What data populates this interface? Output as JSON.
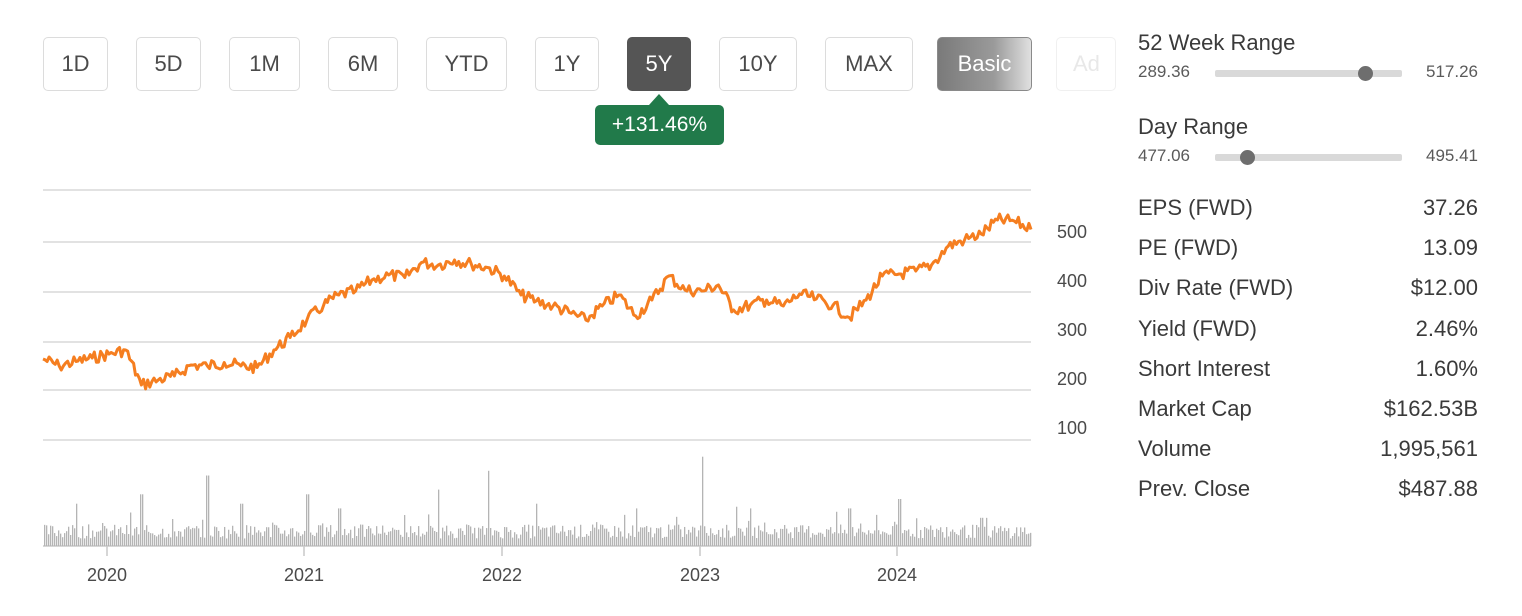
{
  "range_buttons": [
    {
      "label": "1D"
    },
    {
      "label": "5D"
    },
    {
      "label": "1M"
    },
    {
      "label": "6M"
    },
    {
      "label": "YTD"
    },
    {
      "label": "1Y"
    },
    {
      "label": "5Y",
      "active": true
    },
    {
      "label": "10Y"
    },
    {
      "label": "MAX"
    },
    {
      "label": "Basic"
    },
    {
      "label": "Ad"
    }
  ],
  "change_badge": "+131.46%",
  "colors": {
    "line": "#f57e20",
    "volume": "#b4b4b4",
    "badge": "#217a4a",
    "active_button": "#555555",
    "grid": "#d8d8d8"
  },
  "chart_data": {
    "type": "line",
    "x_ticks": [
      "2020",
      "2021",
      "2022",
      "2023",
      "2024"
    ],
    "y_ticks": [
      100,
      200,
      300,
      400,
      500
    ],
    "ylim": [
      50,
      550
    ],
    "series": [
      {
        "values_by_date": [
          [
            "2019-09",
            212
          ],
          [
            "2019-10",
            198
          ],
          [
            "2019-11",
            207
          ],
          [
            "2019-12",
            214
          ],
          [
            "2020-01",
            222
          ],
          [
            "2020-02",
            230
          ],
          [
            "2020-03",
            160
          ],
          [
            "2020-04",
            170
          ],
          [
            "2020-05",
            178
          ],
          [
            "2020-06",
            200
          ],
          [
            "2020-07",
            198
          ],
          [
            "2020-08",
            205
          ],
          [
            "2020-09",
            198
          ],
          [
            "2020-10",
            195
          ],
          [
            "2020-11",
            230
          ],
          [
            "2020-12",
            255
          ],
          [
            "2021-01",
            290
          ],
          [
            "2021-02",
            320
          ],
          [
            "2021-03",
            340
          ],
          [
            "2021-04",
            348
          ],
          [
            "2021-05",
            370
          ],
          [
            "2021-06",
            380
          ],
          [
            "2021-07",
            375
          ],
          [
            "2021-08",
            405
          ],
          [
            "2021-09",
            400
          ],
          [
            "2021-10",
            410
          ],
          [
            "2021-11",
            402
          ],
          [
            "2021-12",
            395
          ],
          [
            "2022-01",
            378
          ],
          [
            "2022-02",
            340
          ],
          [
            "2022-03",
            328
          ],
          [
            "2022-04",
            318
          ],
          [
            "2022-05",
            305
          ],
          [
            "2022-06",
            290
          ],
          [
            "2022-07",
            318
          ],
          [
            "2022-08",
            340
          ],
          [
            "2022-09",
            298
          ],
          [
            "2022-10",
            330
          ],
          [
            "2022-11",
            378
          ],
          [
            "2022-12",
            350
          ],
          [
            "2023-01",
            348
          ],
          [
            "2023-02",
            360
          ],
          [
            "2023-03",
            310
          ],
          [
            "2023-04",
            320
          ],
          [
            "2023-05",
            330
          ],
          [
            "2023-06",
            318
          ],
          [
            "2023-07",
            342
          ],
          [
            "2023-08",
            332
          ],
          [
            "2023-09",
            320
          ],
          [
            "2023-10",
            295
          ],
          [
            "2023-11",
            330
          ],
          [
            "2023-12",
            378
          ],
          [
            "2024-01",
            382
          ],
          [
            "2024-02",
            388
          ],
          [
            "2024-03",
            400
          ],
          [
            "2024-04",
            438
          ],
          [
            "2024-05",
            450
          ],
          [
            "2024-06",
            462
          ],
          [
            "2024-07",
            490
          ],
          [
            "2024-08",
            488
          ],
          [
            "2024-09",
            471
          ]
        ]
      }
    ],
    "volume": {
      "spike_dates": [
        "2019-11",
        "2020-03",
        "2020-07",
        "2020-09",
        "2021-01",
        "2021-03",
        "2021-09",
        "2021-12",
        "2022-03",
        "2022-09",
        "2023-01",
        "2023-04",
        "2023-10",
        "2024-01",
        "2024-06"
      ],
      "spike_levels": [
        0.45,
        0.55,
        0.75,
        0.45,
        0.55,
        0.4,
        0.6,
        0.8,
        0.45,
        0.4,
        0.95,
        0.4,
        0.4,
        0.5,
        0.3
      ]
    }
  },
  "stats": {
    "week52": {
      "title": "52 Week Range",
      "low": "289.36",
      "high": "517.26",
      "position": 0.8
    },
    "day": {
      "title": "Day Range",
      "low": "477.06",
      "high": "495.41",
      "position": 0.17
    },
    "rows": [
      {
        "label": "EPS (FWD)",
        "value": "37.26"
      },
      {
        "label": "PE (FWD)",
        "value": "13.09"
      },
      {
        "label": "Div Rate (FWD)",
        "value": "$12.00"
      },
      {
        "label": "Yield (FWD)",
        "value": "2.46%"
      },
      {
        "label": "Short Interest",
        "value": "1.60%"
      },
      {
        "label": "Market Cap",
        "value": "$162.53B"
      },
      {
        "label": "Volume",
        "value": "1,995,561"
      },
      {
        "label": "Prev. Close",
        "value": "$487.88"
      }
    ]
  }
}
